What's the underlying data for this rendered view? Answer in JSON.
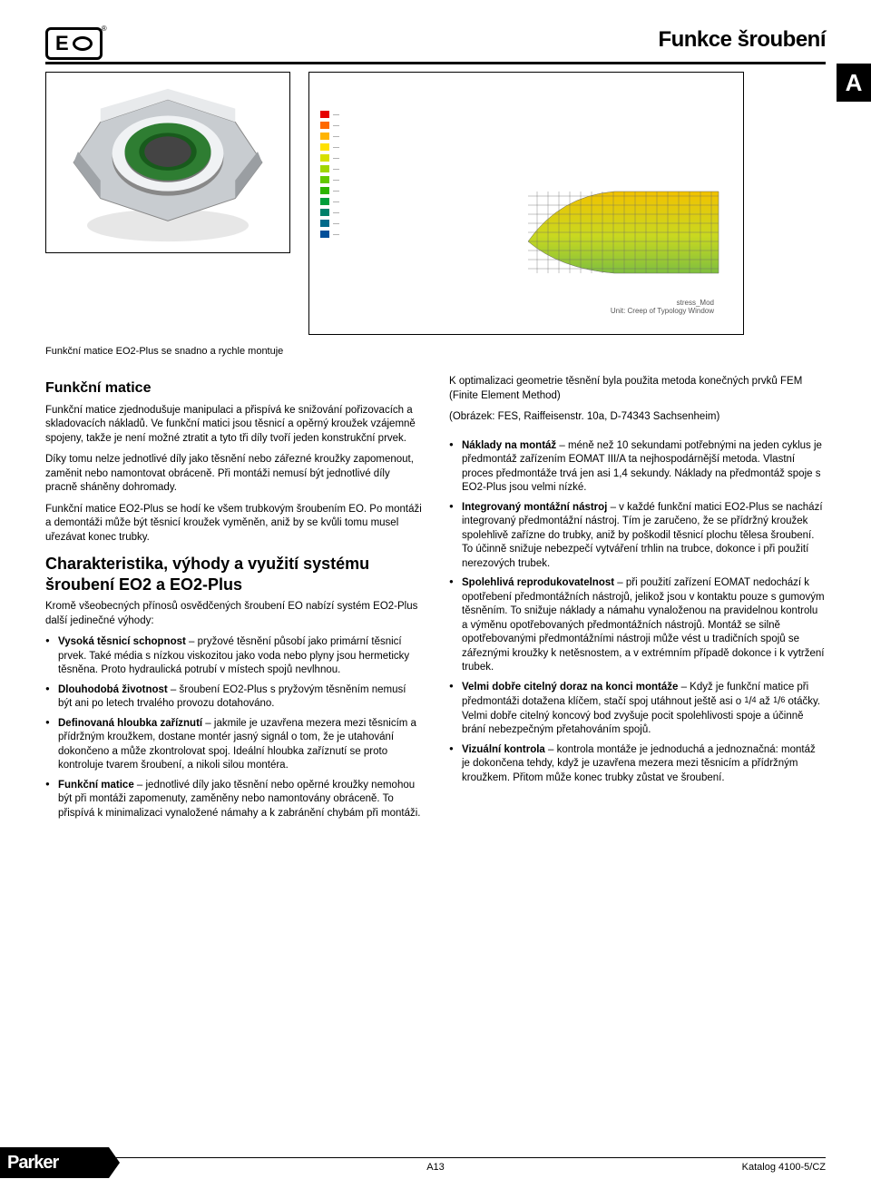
{
  "header": {
    "logo_text": "E",
    "registered": "®",
    "page_title": "Funkce šroubení",
    "tab_letter": "A"
  },
  "figure1": {
    "nut_outer_color": "#cfd2d6",
    "nut_shadow_color": "#8e9398",
    "ring_color": "#2e7d32",
    "highlight_color": "#f4f6f8",
    "caption": "Funkční matice EO2-Plus se snadno a rychle montuje"
  },
  "figure2": {
    "legend_colors": [
      "#e60000",
      "#ff6a00",
      "#ffb400",
      "#ffe100",
      "#d6e000",
      "#a0d600",
      "#63c800",
      "#2db400",
      "#009e3a",
      "#00806a",
      "#006a8a",
      "#004f99"
    ],
    "mesh_line_color": "#7a7a7a",
    "mesh_fill_top": "#f2c200",
    "mesh_fill_mid": "#7fbf3f",
    "caption_line1": "stress_Mod",
    "caption_line2": "Unit: Creep of Typology Window"
  },
  "left_column": {
    "h1": "Funkční matice",
    "p1": "Funkční matice zjednodušuje manipulaci a přispívá ke snižování pořizovacích a skladovacích nákladů. Ve funkční matici jsou těsnicí a opěrný kroužek vzájemně spojeny, takže je není možné ztratit a tyto tři díly tvoří jeden konstrukční prvek.",
    "p2": "Díky tomu nelze jednotlivé díly jako těsnění nebo zářezné kroužky zapomenout, zaměnit nebo namontovat obráceně. Při montáži nemusí být jednotlivé díly pracně sháněny dohromady.",
    "p3": "Funkční matice EO2-Plus se hodí ke všem trubkovým šroubením EO. Po montáži a demontáži může být těsnicí kroužek vyměněn, aniž by se kvůli tomu musel uřezávat konec trubky.",
    "h2": "Charakteristika, výhody a využití systému šroubení EO2 a EO2-Plus",
    "p4": "Kromě všeobecných přínosů osvědčených šroubení EO nabízí systém EO2-Plus další jedinečné výhody:",
    "bullets": [
      {
        "term": "Vysoká těsnicí schopnost",
        "text": " – pryžové těsnění působí jako primární těsnicí prvek. Také média s nízkou viskozitou jako voda nebo plyny jsou hermeticky těsněna. Proto hydraulická potrubí v místech spojů nevlhnou."
      },
      {
        "term": "Dlouhodobá životnost",
        "text": " – šroubení EO2-Plus s pryžovým těsněním nemusí být ani po letech trvalého provozu dotahováno."
      },
      {
        "term": "Definovaná hloubka zaříznutí",
        "text": " – jakmile je uzavřena mezera mezi těsnicím a přídržným kroužkem, dostane montér jasný signál o tom, že je utahování dokončeno a může zkontrolovat spoj. Ideální hloubka zaříznutí se proto kontroluje tvarem šroubení, a nikoli silou montéra."
      },
      {
        "term": "Funkční matice",
        "text": " – jednotlivé díly jako těsnění nebo opěrné kroužky nemohou být při montáži zapomenuty, zaměněny nebo namontovány obráceně. To přispívá k minimalizaci vynaložené námahy a k zabránění chybám při montáži."
      }
    ]
  },
  "right_column": {
    "p1": "K optimalizaci geometrie těsnění byla použita metoda konečných prvků FEM (Finite Element Method)",
    "p2": "(Obrázek: FES, Raiffeisenstr. 10a, D-74343 Sachsenheim)",
    "bullets": [
      {
        "term": "Náklady na montáž",
        "text": " – méně než 10 sekundami potřebnými na jeden cyklus je předmontáž zařízením EOMAT III/A ta nejhospodárnější metoda. Vlastní proces předmontáže trvá jen asi 1,4 sekundy. Náklady na předmontáž spoje s EO2-Plus jsou velmi nízké."
      },
      {
        "term": "Integrovaný montážní nástroj",
        "text": " – v každé funkční matici EO2-Plus se nachází integrovaný předmontážní nástroj. Tím je zaručeno, že se přídržný kroužek spolehlivě zařízne do trubky, aniž by poškodil těsnicí plochu tělesa šroubení. To účinně snižuje nebezpečí vytváření trhlin na trubce, dokonce i při použití nerezových trubek."
      },
      {
        "term": "Spolehlivá reprodukovatelnost",
        "text": " – při použití zařízení EOMAT nedochází k opotřebení předmontážních nástrojů, jelikož jsou v kontaktu pouze s gumovým těsněním. To snižuje náklady a námahu vynaloženou na pravidelnou kontrolu a výměnu opotřebovaných předmontážních nástrojů. Montáž se silně opotřebovanými předmontážními nástroji může vést u tradičních spojů se zářeznými kroužky k netěsnostem, a v extrémním případě dokonce i k vytržení trubek."
      },
      {
        "term": "Velmi dobře citelný doraz na konci montáže",
        "text_html": " – Když je funkční matice při předmontáži dotažena klíčem, stačí spoj utáhnout ještě asi o <span class='frac'>1</span>/<span class='frac'>4</span> až <span class='frac'>1</span>/<span class='frac'>6</span> otáčky. Velmi dobře citelný koncový bod zvyšuje pocit spolehlivosti spoje a účinně brání nebezpečným přetahováním spojů."
      },
      {
        "term": "Vizuální kontrola",
        "text": " – kontrola montáže je jednoduchá a jednoznačná: montáž je dokončena tehdy, když je uzavřena mezera mezi těsnicím a přídržným kroužkem. Přitom může konec trubky zůstat ve šroubení."
      }
    ]
  },
  "footer": {
    "page_number": "A13",
    "catalog": "Katalog 4100-5/CZ",
    "logo_text": "Parker"
  }
}
